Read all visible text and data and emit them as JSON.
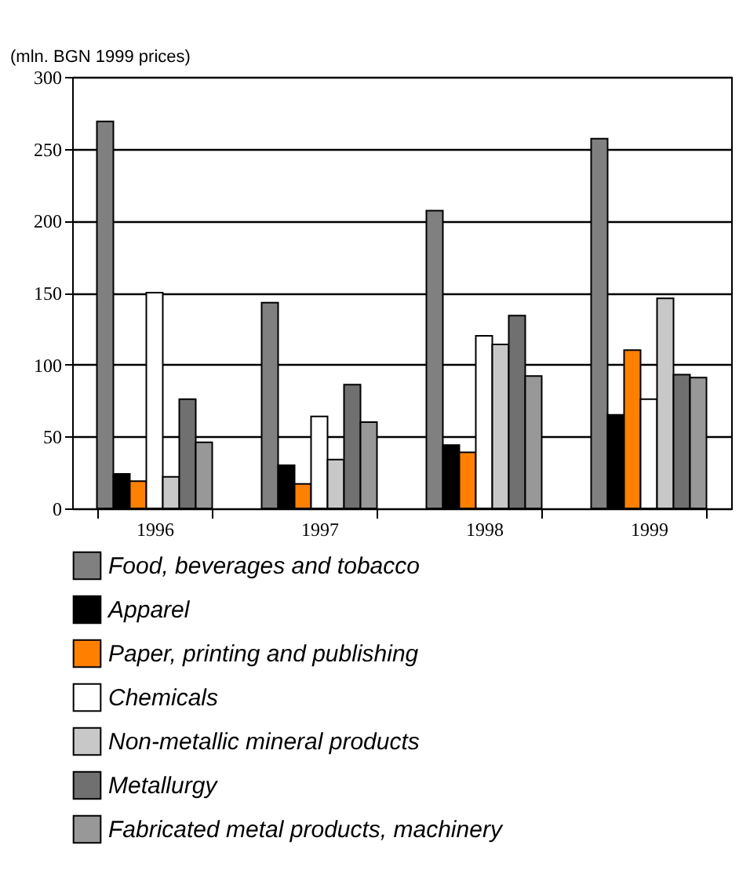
{
  "chart_data": {
    "type": "bar",
    "ylabel": "(mln. BGN 1999 prices)",
    "categories": [
      "1996",
      "1997",
      "1998",
      "1999"
    ],
    "series": [
      {
        "name": "Food, beverages and tobacco",
        "color": "#808080",
        "values": [
          269,
          143,
          207,
          257
        ]
      },
      {
        "name": "Apparel",
        "color": "#000000",
        "values": [
          24,
          30,
          44,
          65
        ]
      },
      {
        "name": "Paper, printing and publishing",
        "color": "#ff8000",
        "values": [
          19,
          17,
          39,
          110
        ]
      },
      {
        "name": "Chemicals",
        "color": "#ffffff",
        "values": [
          150,
          64,
          120,
          76
        ]
      },
      {
        "name": "Non-metallic mineral products",
        "color": "#c8c8c8",
        "values": [
          22,
          34,
          114,
          146
        ]
      },
      {
        "name": "Metallurgy",
        "color": "#707070",
        "values": [
          76,
          86,
          134,
          93
        ]
      },
      {
        "name": "Fabricated metal products, machinery",
        "color": "#989898",
        "values": [
          46,
          60,
          92,
          91
        ]
      }
    ],
    "ylim": [
      0,
      300
    ],
    "yticks": [
      0,
      50,
      100,
      150,
      200,
      250,
      300
    ],
    "grid": "y",
    "legend": "bottom"
  }
}
